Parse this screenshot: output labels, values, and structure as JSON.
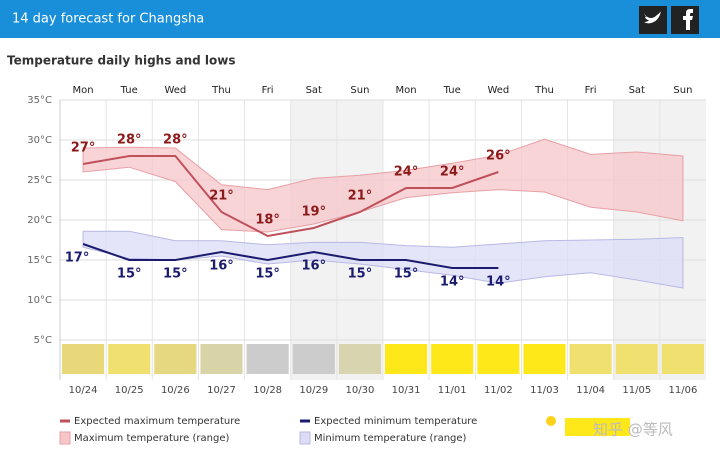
{
  "chart_data": {
    "type": "line",
    "title": "14 day forecast for Changsha",
    "subtitle": "Temperature daily highs and lows",
    "days": [
      "Mon",
      "Tue",
      "Wed",
      "Thu",
      "Fri",
      "Sat",
      "Sun",
      "Mon",
      "Tue",
      "Wed",
      "Thu",
      "Fri",
      "Sat",
      "Sun"
    ],
    "categories": [
      "10/24",
      "10/25",
      "10/26",
      "10/27",
      "10/28",
      "10/29",
      "10/30",
      "10/31",
      "11/01",
      "11/02",
      "11/03",
      "11/04",
      "11/05",
      "11/06"
    ],
    "ylim": [
      0,
      35
    ],
    "yticks": [
      {
        "value": 5,
        "label": "5°C"
      },
      {
        "value": 10,
        "label": "10°C"
      },
      {
        "value": 15,
        "label": "15°C"
      },
      {
        "value": 20,
        "label": "20°C"
      },
      {
        "value": 25,
        "label": "25°C"
      },
      {
        "value": 30,
        "label": "30°C"
      },
      {
        "value": 35,
        "label": "35°C"
      }
    ],
    "series": [
      {
        "name": "Expected maximum temperature",
        "color": "#c0505a",
        "label_color": "#8b1a1a",
        "values": [
          27,
          28,
          28,
          21,
          18,
          19,
          21,
          24,
          24,
          26,
          null,
          null,
          null,
          null
        ],
        "value_labels": [
          "27°",
          "28°",
          "28°",
          "21°",
          "18°",
          "19°",
          "21°",
          "24°",
          "24°",
          "26°",
          null,
          null,
          null,
          null
        ]
      },
      {
        "name": "Expected minimum temperature",
        "color": "#1c1c6e",
        "label_color": "#1c1c6e",
        "values": [
          17,
          15,
          15,
          16,
          15,
          16,
          15,
          15,
          14,
          14,
          null,
          null,
          null,
          null
        ],
        "value_labels": [
          "17°",
          "15°",
          "15°",
          "16°",
          "15°",
          "16°",
          "15°",
          "15°",
          "14°",
          "14°",
          null,
          null,
          null,
          null
        ]
      }
    ],
    "ranges": [
      {
        "name": "Maximum temperature (range)",
        "color": "#f7c6c9",
        "stroke": "#e8a0a5",
        "high": [
          29,
          29.1,
          29,
          24.4,
          23.8,
          25.2,
          25.6,
          26.2,
          27.1,
          28.1,
          30.1,
          28.2,
          28.5,
          28
        ],
        "low": [
          26,
          26.6,
          24.8,
          18.8,
          18.5,
          19.5,
          21,
          22.8,
          23.4,
          23.8,
          23.5,
          21.6,
          21,
          19.9
        ]
      },
      {
        "name": "Minimum temperature (range)",
        "color": "#dcdcf7",
        "stroke": "#b8b8e6",
        "high": [
          18.6,
          18.6,
          17.4,
          17.4,
          16.9,
          17.2,
          17.2,
          16.8,
          16.6,
          17,
          17.4,
          17.5,
          17.6,
          17.8
        ],
        "low": [
          16.6,
          15.2,
          15,
          15.5,
          14.5,
          15,
          14.5,
          13.8,
          13.1,
          12.1,
          12.9,
          13.4,
          12.5,
          11.5
        ]
      }
    ],
    "sun_colors": [
      "#e8d87a",
      "#efe070",
      "#e6d880",
      "#d8d4a8",
      "#cccccc",
      "#cccccc",
      "#d8d4b0",
      "#ffe81a",
      "#ffe81a",
      "#ffe81a",
      "#ffe81a",
      "#efe070",
      "#f0e070",
      "#efe070"
    ],
    "shaded": [
      5,
      6,
      12,
      13
    ],
    "grid": true,
    "watermark": "知乎 @等风"
  }
}
